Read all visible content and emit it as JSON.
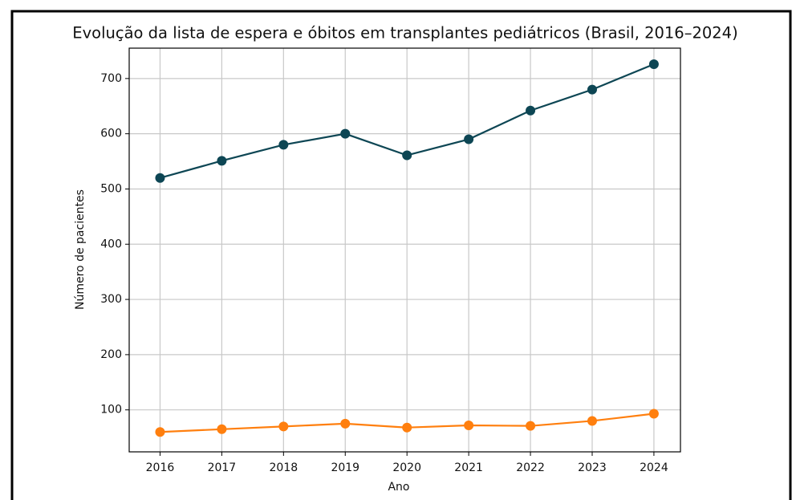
{
  "chart_data": {
    "type": "line",
    "title": "Evolução da lista de espera e óbitos em transplantes pediátricos (Brasil, 2016–2024)",
    "x_label": "Ano",
    "y_label": "Número de pacientes",
    "x": [
      2016,
      2017,
      2018,
      2019,
      2020,
      2021,
      2022,
      2023,
      2024
    ],
    "series": [
      {
        "color": "#0d4654",
        "values": [
          520,
          551,
          580,
          600,
          561,
          590,
          642,
          680,
          726
        ]
      },
      {
        "color": "#ff7f0e",
        "values": [
          60,
          65,
          70,
          75,
          68,
          72,
          71,
          80,
          93
        ]
      }
    ],
    "xlim": [
      2015.5,
      2024.43
    ],
    "xticks": [
      2016,
      2017,
      2018,
      2019,
      2020,
      2021,
      2022,
      2023,
      2024
    ],
    "ylim": [
      24,
      755
    ],
    "yticks": [
      100,
      200,
      300,
      400,
      500,
      600,
      700
    ],
    "grid": true
  }
}
